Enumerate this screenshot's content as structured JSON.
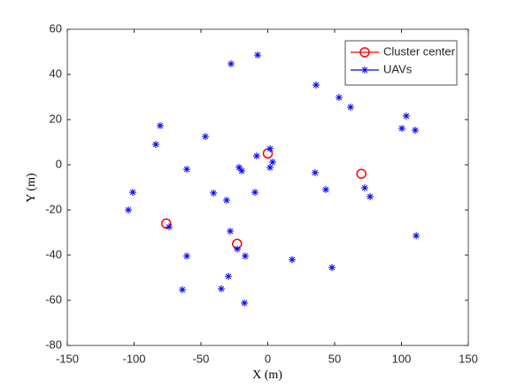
{
  "chart_data": {
    "type": "scatter",
    "xlabel": "X (m)",
    "ylabel": "Y (m)",
    "xlim": [
      -150,
      150
    ],
    "xticks": [
      -150,
      -100,
      -50,
      0,
      50,
      100,
      150
    ],
    "ylim": [
      -80,
      60
    ],
    "yticks": [
      -80,
      -60,
      -40,
      -20,
      0,
      20,
      40,
      60
    ],
    "legend_position": "upper right",
    "series": [
      {
        "name": "Cluster center",
        "color": "#ff0000",
        "marker": "circle",
        "x": [
          0,
          70,
          -76,
          -23
        ],
        "values": [
          5,
          -4,
          -26,
          -35
        ]
      },
      {
        "name": "UAVs",
        "color": "#0000ff",
        "marker": "asterisk",
        "x": [
          -7.6,
          -27.5,
          36.1,
          53.3,
          61.9,
          103.6,
          100.3,
          110.3,
          -80.5,
          -83.8,
          -46.7,
          1.7,
          -8.3,
          3.6,
          1.7,
          -21.5,
          -19.5,
          -60.6,
          35.4,
          72.5,
          43.4,
          76.5,
          -9.6,
          -40.6,
          -101,
          -30.8,
          -104.3,
          -73.8,
          -28.1,
          -22.8,
          -16.9,
          -60.6,
          18.2,
          111,
          48,
          -29.5,
          -63.9,
          -34.8,
          -17.5
        ],
        "values": [
          48.6,
          44.7,
          35.3,
          29.8,
          25.5,
          21.6,
          16.1,
          15.3,
          17.3,
          9,
          12.5,
          7.1,
          3.9,
          1.2,
          -1.2,
          -1.2,
          -2.7,
          -2,
          -3.5,
          -10.2,
          -11,
          -14.1,
          -12.2,
          -12.5,
          -12.2,
          -15.7,
          -20,
          -27.5,
          -29.4,
          -37.3,
          -40.4,
          -40.4,
          -42,
          -31.4,
          -45.5,
          -49.4,
          -55.3,
          -54.9,
          -61.2
        ]
      }
    ]
  }
}
